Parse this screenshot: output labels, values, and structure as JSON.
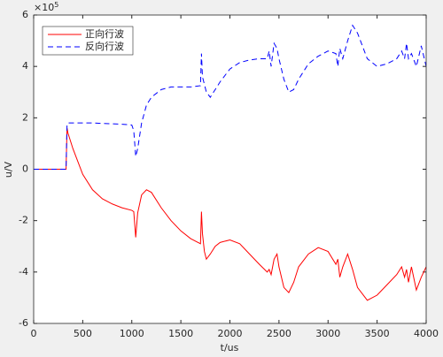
{
  "chart_data": {
    "type": "line",
    "x": [
      0,
      330,
      340,
      350,
      400,
      500,
      600,
      700,
      800,
      900,
      1000,
      1020,
      1040,
      1060,
      1100,
      1150,
      1200,
      1300,
      1400,
      1500,
      1600,
      1700,
      1710,
      1720,
      1740,
      1760,
      1800,
      1850,
      1900,
      2000,
      2100,
      2200,
      2300,
      2380,
      2400,
      2420,
      2450,
      2480,
      2500,
      2550,
      2600,
      2650,
      2700,
      2800,
      2900,
      3000,
      3080,
      3100,
      3120,
      3150,
      3200,
      3250,
      3300,
      3400,
      3500,
      3600,
      3700,
      3750,
      3780,
      3800,
      3820,
      3850,
      3900,
      3950,
      4000
    ],
    "series": [
      {
        "name": "正向行波",
        "color": "#ff0000",
        "dash": "solid",
        "values": [
          0,
          0,
          1.6,
          1.4,
          0.8,
          -0.2,
          -0.8,
          -1.15,
          -1.35,
          -1.5,
          -1.6,
          -1.65,
          -2.65,
          -1.7,
          -1.0,
          -0.8,
          -0.9,
          -1.5,
          -2.0,
          -2.4,
          -2.7,
          -2.9,
          -1.65,
          -2.5,
          -3.2,
          -3.5,
          -3.3,
          -3.0,
          -2.85,
          -2.75,
          -2.9,
          -3.3,
          -3.7,
          -4.0,
          -3.9,
          -4.1,
          -3.5,
          -3.3,
          -3.8,
          -4.6,
          -4.8,
          -4.4,
          -3.8,
          -3.3,
          -3.05,
          -3.2,
          -3.7,
          -3.5,
          -4.2,
          -3.8,
          -3.3,
          -3.9,
          -4.6,
          -5.1,
          -4.9,
          -4.5,
          -4.1,
          -3.8,
          -4.2,
          -3.9,
          -4.4,
          -3.8,
          -4.7,
          -4.2,
          -3.8
        ]
      },
      {
        "name": "反向行波",
        "color": "#0000ff",
        "dash": "dashed",
        "values": [
          0,
          0,
          1.75,
          1.8,
          1.8,
          1.8,
          1.8,
          1.78,
          1.77,
          1.75,
          1.72,
          1.5,
          0.5,
          0.8,
          1.8,
          2.5,
          2.8,
          3.1,
          3.2,
          3.2,
          3.2,
          3.25,
          4.5,
          3.6,
          3.3,
          3.0,
          2.8,
          3.1,
          3.4,
          3.9,
          4.15,
          4.25,
          4.3,
          4.3,
          4.6,
          4.0,
          4.9,
          4.7,
          4.3,
          3.5,
          3.0,
          3.1,
          3.5,
          4.1,
          4.4,
          4.6,
          4.5,
          4.0,
          4.7,
          4.3,
          5.0,
          5.6,
          5.3,
          4.3,
          4.0,
          4.1,
          4.3,
          4.6,
          4.3,
          4.9,
          4.3,
          4.5,
          4.0,
          4.8,
          4.0
        ]
      }
    ],
    "xlabel": "t/us",
    "ylabel": "u/V",
    "y_multiplier": {
      "base": "×10",
      "exponent": "5"
    },
    "xlim": [
      0,
      4000
    ],
    "xticks": [
      0,
      500,
      1000,
      1500,
      2000,
      2500,
      3000,
      3500,
      4000
    ],
    "ylim": [
      -6,
      6
    ],
    "yticks": [
      -6,
      -4,
      -2,
      0,
      2,
      4,
      6
    ],
    "legend": "northwest",
    "grid": false
  }
}
